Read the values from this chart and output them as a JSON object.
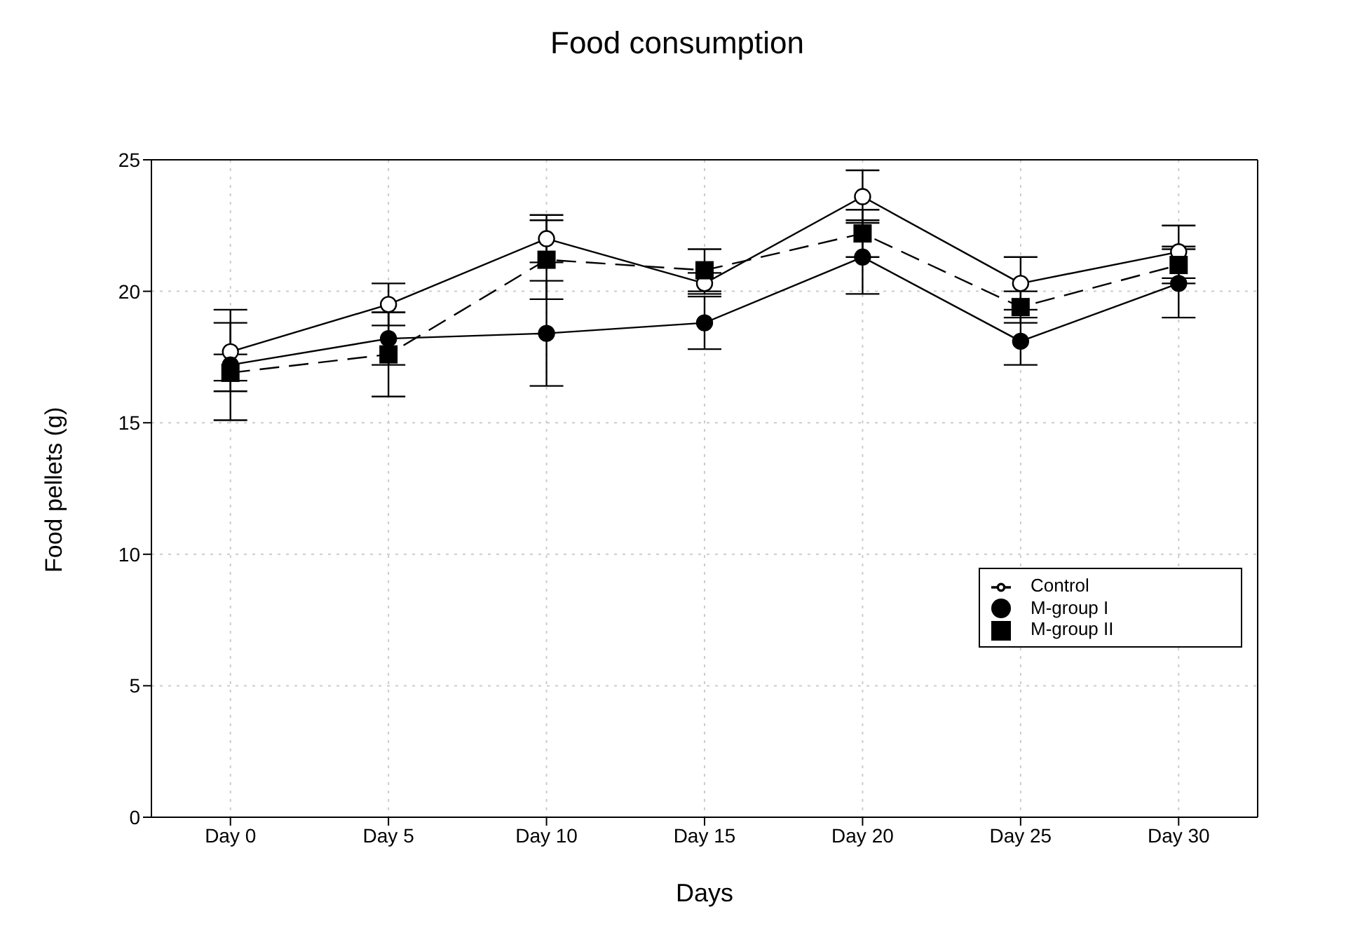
{
  "chart_data": {
    "type": "line",
    "title": "Food consumption",
    "xlabel": "Days",
    "ylabel": "Food pellets (g)",
    "categories": [
      "Day 0",
      "Day 5",
      "Day 10",
      "Day 15",
      "Day 20",
      "Day 25",
      "Day 30"
    ],
    "ylim": [
      0,
      25
    ],
    "yticks": [
      0,
      5,
      10,
      15,
      20,
      25
    ],
    "grid": true,
    "legend": "bottom right",
    "series": [
      {
        "name": "Control",
        "color": "#000000",
        "marker": "circle",
        "line_style": "solid",
        "values": [
          17.7,
          19.5,
          22.0,
          20.3,
          23.6,
          20.3,
          21.5
        ],
        "errors": [
          1.1,
          0.8,
          0.9,
          0.4,
          1.0,
          1.0,
          1.0
        ]
      },
      {
        "name": "M-group I",
        "color": "#000000",
        "marker": "circle",
        "line_style": "solid",
        "values": [
          17.2,
          18.2,
          18.4,
          18.8,
          21.3,
          18.1,
          20.3
        ],
        "errors": [
          2.1,
          1.0,
          2.0,
          1.0,
          1.4,
          0.9,
          1.3
        ]
      },
      {
        "name": "M-group II",
        "color": "#000000",
        "marker": "square",
        "line_style": "dashed",
        "values": [
          16.9,
          17.6,
          21.2,
          20.8,
          22.2,
          19.4,
          21.0
        ],
        "errors": [
          0.7,
          1.6,
          1.5,
          0.8,
          0.9,
          0.6,
          0.7
        ]
      }
    ]
  }
}
